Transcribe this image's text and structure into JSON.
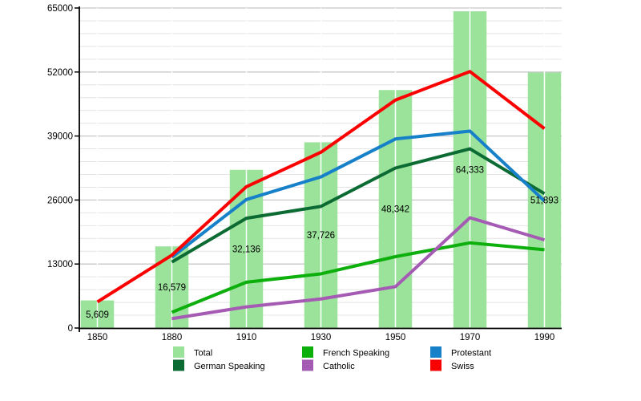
{
  "chart_data": {
    "type": "bar+line",
    "title": "",
    "categories": [
      "1850",
      "1880",
      "1910",
      "1930",
      "1950",
      "1970",
      "1990"
    ],
    "y_axis": {
      "ylim": [
        0,
        65000
      ],
      "tick_labels": [
        "0",
        "13000",
        "26000",
        "39000",
        "52000",
        "65000"
      ],
      "tick_values": [
        0,
        13000,
        26000,
        39000,
        52000,
        65000
      ],
      "minor_step": 2600
    },
    "grid": {
      "horizontal_major_color": "#c8c8c8",
      "horizontal_minor_color": "#e4e4e4",
      "vertical_over_bars_color": "#ffffff"
    },
    "bars": {
      "name": "Total",
      "color": "#9be29b",
      "values": [
        5609,
        16579,
        32136,
        37726,
        48342,
        64333,
        51893
      ],
      "labels": [
        "5,609",
        "16,579",
        "32,136",
        "37,726",
        "48,342",
        "64,333",
        "51,893"
      ]
    },
    "lines": [
      {
        "name": "German Speaking",
        "color": "#0b6b32",
        "values": [
          null,
          13400,
          22300,
          24700,
          32500,
          36400,
          27300
        ]
      },
      {
        "name": "French Speaking",
        "color": "#0daf0d",
        "values": [
          null,
          3200,
          9300,
          11000,
          14500,
          17300,
          15900
        ]
      },
      {
        "name": "Protestant",
        "color": "#1680c8",
        "values": [
          null,
          14400,
          26100,
          30700,
          38400,
          40000,
          25800
        ]
      },
      {
        "name": "Catholic",
        "color": "#a55bb3",
        "values": [
          null,
          1900,
          4300,
          5900,
          8400,
          22400,
          17900
        ]
      },
      {
        "name": "Swiss",
        "color": "#fb0000",
        "values": [
          5300,
          14800,
          28700,
          35700,
          46300,
          52100,
          40500
        ]
      }
    ],
    "legend": {
      "position": "bottom-center",
      "items": [
        {
          "label": "Total",
          "color": "#9be29b"
        },
        {
          "label": "German Speaking",
          "color": "#0b6b32"
        },
        {
          "label": "French Speaking",
          "color": "#0daf0d"
        },
        {
          "label": "Catholic",
          "color": "#a55bb3"
        },
        {
          "label": "Protestant",
          "color": "#1680c8"
        },
        {
          "label": "Swiss",
          "color": "#fb0000"
        }
      ],
      "layout": "3 columns x 2 rows, column-major"
    }
  }
}
